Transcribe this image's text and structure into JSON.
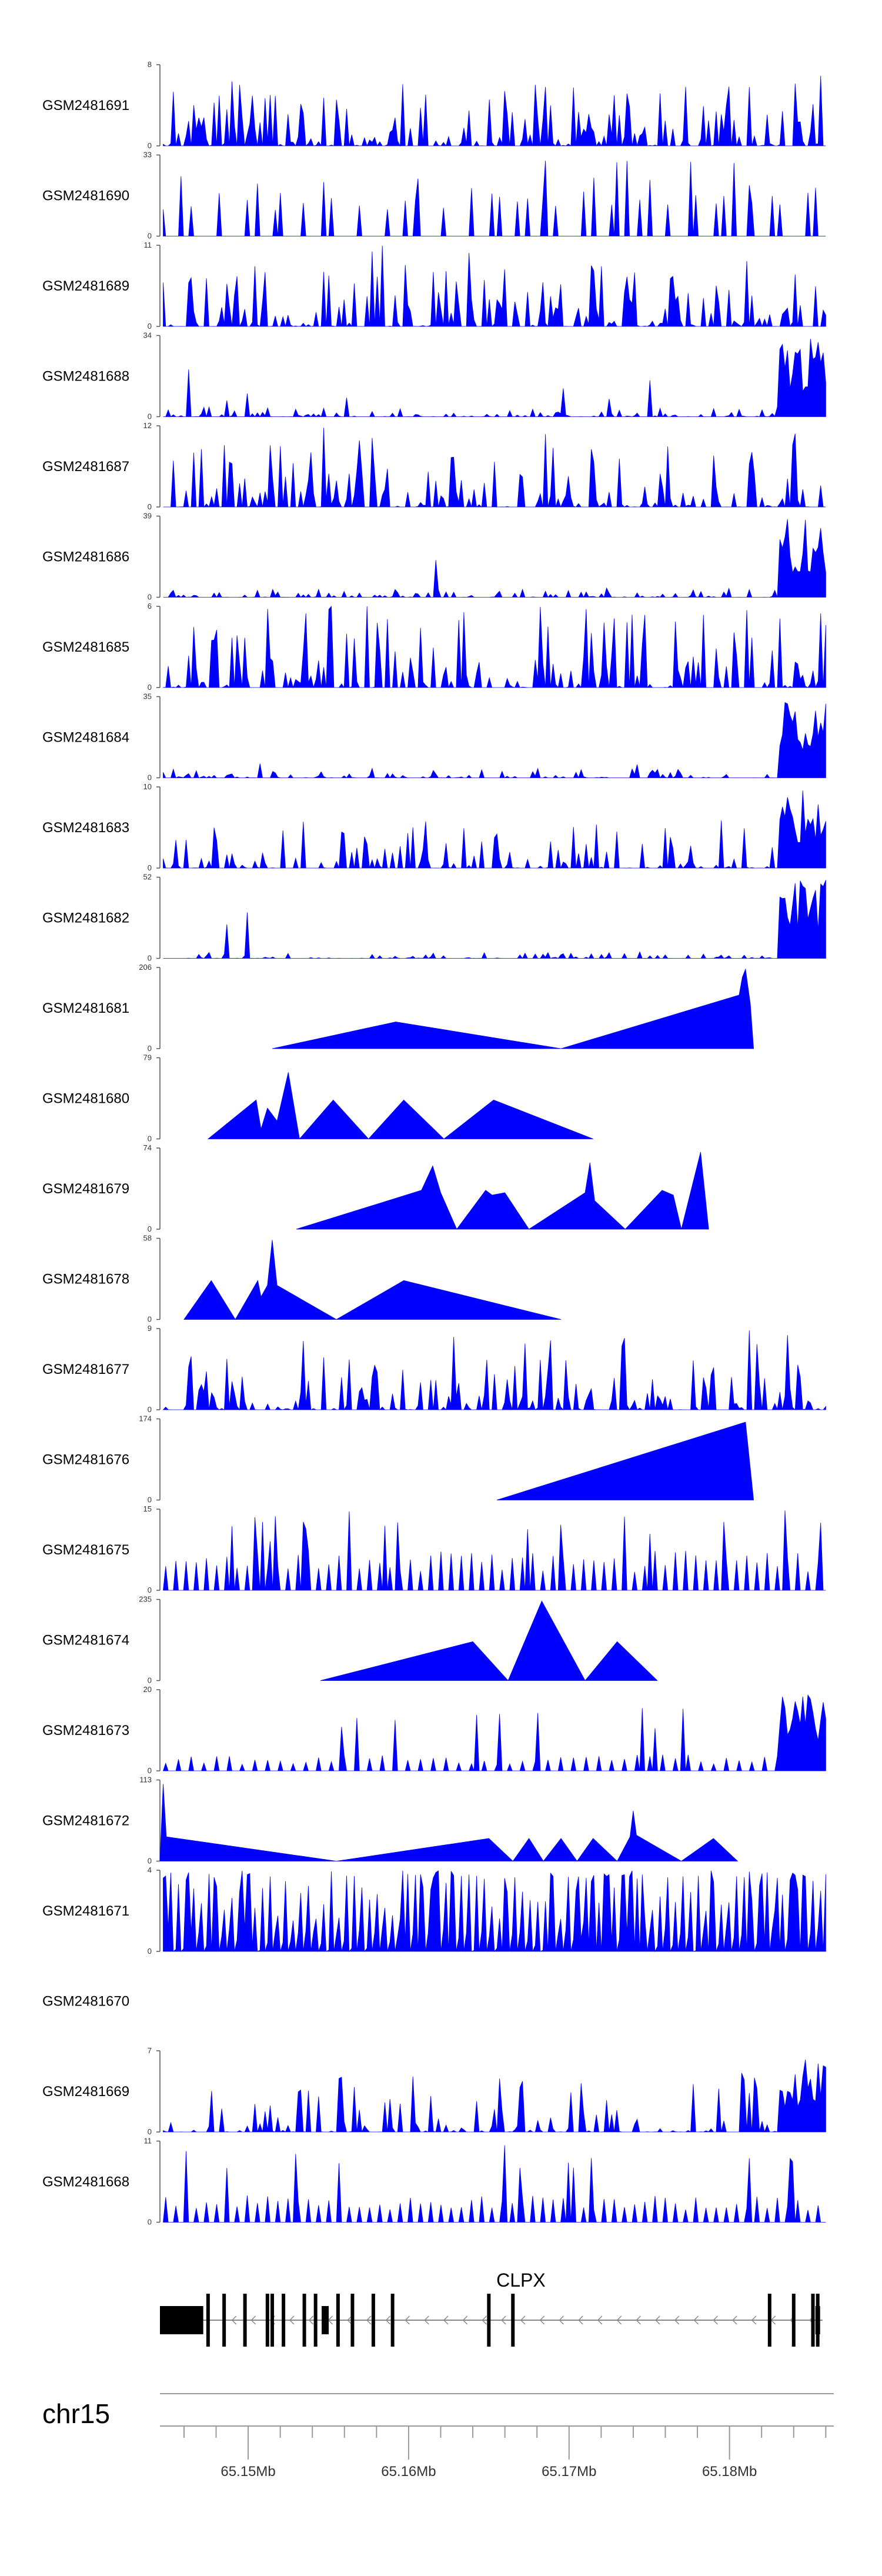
{
  "chart_data": {
    "type": "area",
    "genome": {
      "chromosome": "chr15",
      "xlim": [
        65.1445,
        65.1865
      ],
      "ticks": [
        "65.15Mb",
        "65.16Mb",
        "65.17Mb",
        "65.18Mb"
      ],
      "tick_values": [
        65.15,
        65.16,
        65.17,
        65.18
      ],
      "minor_ticks": [
        65.146,
        65.148,
        65.152,
        65.154,
        65.156,
        65.158,
        65.162,
        65.164,
        65.166,
        65.168,
        65.172,
        65.174,
        65.176,
        65.178,
        65.182,
        65.184,
        65.186
      ]
    },
    "gene": {
      "name": "CLPX",
      "strand": "-",
      "start": 65.1445,
      "end": 65.1858,
      "utr_block": [
        65.1445,
        65.1472
      ],
      "exons": [
        65.1475,
        65.1485,
        65.1498,
        65.1512,
        65.1515,
        65.1522,
        65.1535,
        65.1542,
        65.1556,
        65.1565,
        65.1578,
        65.159,
        65.165,
        65.1665,
        65.1825,
        65.184,
        65.1852,
        65.1855
      ]
    },
    "fill_color": "#0000ff",
    "series": [
      {
        "name": "GSM2481691",
        "ymax": 8,
        "pattern": "dense",
        "seed": 11,
        "level": 0.35
      },
      {
        "name": "GSM2481690",
        "ymax": 33,
        "pattern": "sparse",
        "seed": 12,
        "level": 0.55
      },
      {
        "name": "GSM2481689",
        "ymax": 11,
        "pattern": "dense",
        "seed": 13,
        "level": 0.35
      },
      {
        "name": "GSM2481688",
        "ymax": 34,
        "pattern": "dense_end",
        "seed": 14,
        "level": 0.04
      },
      {
        "name": "GSM2481687",
        "ymax": 12,
        "pattern": "dense",
        "seed": 15,
        "level": 0.35
      },
      {
        "name": "GSM2481686",
        "ymax": 39,
        "pattern": "dense_end",
        "seed": 16,
        "level": 0.04
      },
      {
        "name": "GSM2481685",
        "ymax": 6,
        "pattern": "dense",
        "seed": 17,
        "level": 0.5
      },
      {
        "name": "GSM2481684",
        "ymax": 35,
        "pattern": "dense_end",
        "seed": 18,
        "level": 0.04
      },
      {
        "name": "GSM2481683",
        "ymax": 10,
        "pattern": "dense_end",
        "seed": 19,
        "level": 0.2
      },
      {
        "name": "GSM2481682",
        "ymax": 52,
        "pattern": "dense_end",
        "seed": 20,
        "level": 0.03
      },
      {
        "name": "GSM2481681",
        "ymax": 206,
        "pattern": "points",
        "points": [
          [
            65.1515,
            0
          ],
          [
            65.1592,
            0.33
          ],
          [
            65.1695,
            0
          ],
          [
            65.1806,
            0.66
          ],
          [
            65.1808,
            0.88
          ],
          [
            65.181,
            0.98
          ],
          [
            65.1813,
            0.55
          ],
          [
            65.1815,
            0
          ]
        ]
      },
      {
        "name": "GSM2481680",
        "ymax": 79,
        "pattern": "points",
        "points": [
          [
            65.1475,
            0
          ],
          [
            65.1505,
            0.48
          ],
          [
            65.1508,
            0.12
          ],
          [
            65.1512,
            0.38
          ],
          [
            65.1518,
            0.22
          ],
          [
            65.1525,
            0.82
          ],
          [
            65.1532,
            0
          ],
          [
            65.1553,
            0.48
          ],
          [
            65.1575,
            0
          ],
          [
            65.1597,
            0.48
          ],
          [
            65.1622,
            0
          ],
          [
            65.1653,
            0.48
          ],
          [
            65.1715,
            0
          ]
        ]
      },
      {
        "name": "GSM2481679",
        "ymax": 74,
        "pattern": "points",
        "points": [
          [
            65.153,
            0
          ],
          [
            65.1608,
            0.48
          ],
          [
            65.1615,
            0.78
          ],
          [
            65.162,
            0.45
          ],
          [
            65.163,
            0
          ],
          [
            65.1648,
            0.48
          ],
          [
            65.1652,
            0.42
          ],
          [
            65.166,
            0.45
          ],
          [
            65.1675,
            0
          ],
          [
            65.171,
            0.45
          ],
          [
            65.1713,
            0.82
          ],
          [
            65.1716,
            0.35
          ],
          [
            65.1735,
            0
          ],
          [
            65.1758,
            0.48
          ],
          [
            65.1765,
            0.42
          ],
          [
            65.177,
            0
          ],
          [
            65.1782,
            0.95
          ],
          [
            65.1787,
            0
          ]
        ]
      },
      {
        "name": "GSM2481678",
        "ymax": 58,
        "pattern": "points",
        "points": [
          [
            65.146,
            0
          ],
          [
            65.1477,
            0.48
          ],
          [
            65.1492,
            0
          ],
          [
            65.1506,
            0.48
          ],
          [
            65.1508,
            0.28
          ],
          [
            65.1512,
            0.42
          ],
          [
            65.1515,
            0.98
          ],
          [
            65.1518,
            0.42
          ],
          [
            65.1555,
            0
          ],
          [
            65.1597,
            0.48
          ],
          [
            65.1695,
            0
          ]
        ]
      },
      {
        "name": "GSM2481677",
        "ymax": 9,
        "pattern": "dense",
        "seed": 27,
        "level": 0.3
      },
      {
        "name": "GSM2481676",
        "ymax": 174,
        "pattern": "points",
        "points": [
          [
            65.1655,
            0
          ],
          [
            65.181,
            0.96
          ],
          [
            65.1815,
            0
          ]
        ]
      },
      {
        "name": "GSM2481675",
        "ymax": 15,
        "pattern": "sparse_dense",
        "seed": 29,
        "level": 0.45
      },
      {
        "name": "GSM2481674",
        "ymax": 235,
        "pattern": "points",
        "points": [
          [
            65.1545,
            0
          ],
          [
            65.164,
            0.48
          ],
          [
            65.1662,
            0
          ],
          [
            65.1683,
            0.98
          ],
          [
            65.171,
            0
          ],
          [
            65.173,
            0.48
          ],
          [
            65.1755,
            0
          ]
        ]
      },
      {
        "name": "GSM2481673",
        "ymax": 20,
        "pattern": "sparse_end",
        "seed": 31,
        "level": 0.25
      },
      {
        "name": "GSM2481672",
        "ymax": 113,
        "pattern": "points",
        "points": [
          [
            65.1445,
            0
          ],
          [
            65.1447,
            0.95
          ],
          [
            65.1449,
            0.3
          ],
          [
            65.1555,
            0
          ],
          [
            65.165,
            0.28
          ],
          [
            65.1665,
            0
          ],
          [
            65.1675,
            0.28
          ],
          [
            65.1684,
            0
          ],
          [
            65.1695,
            0.28
          ],
          [
            65.1705,
            0
          ],
          [
            65.1715,
            0.28
          ],
          [
            65.173,
            0
          ],
          [
            65.1738,
            0.3
          ],
          [
            65.174,
            0.62
          ],
          [
            65.1742,
            0.32
          ],
          [
            65.177,
            0
          ],
          [
            65.179,
            0.28
          ],
          [
            65.1805,
            0
          ]
        ]
      },
      {
        "name": "GSM2481671",
        "ymax": 4,
        "pattern": "spikes",
        "seed": 33,
        "level": 0.9
      },
      {
        "name": "GSM2481670",
        "ymax": null,
        "pattern": "empty"
      },
      {
        "name": "GSM2481669",
        "ymax": 7,
        "pattern": "dense_end",
        "seed": 35,
        "level": 0.25
      },
      {
        "name": "GSM2481668",
        "ymax": 11,
        "pattern": "sparse_dense",
        "seed": 36,
        "level": 0.3
      }
    ]
  }
}
